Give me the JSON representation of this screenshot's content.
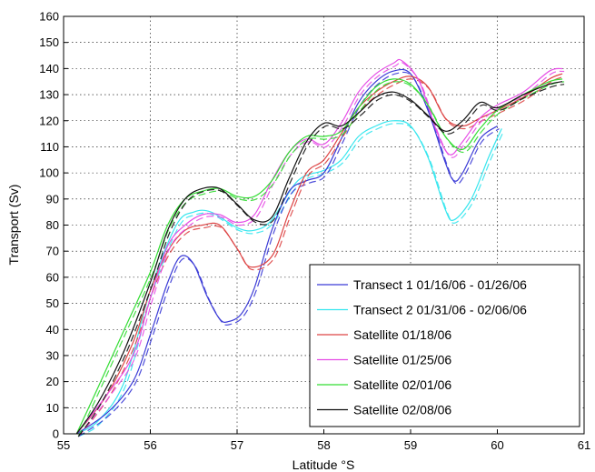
{
  "chart_data": {
    "type": "line",
    "title": "",
    "xlabel": "Latitude °S",
    "ylabel": "Transport (Sv)",
    "xlim": [
      55,
      61
    ],
    "ylim": [
      0,
      160
    ],
    "xticks": [
      55,
      56,
      57,
      58,
      59,
      60,
      61
    ],
    "yticks": [
      0,
      10,
      20,
      30,
      40,
      50,
      60,
      70,
      80,
      90,
      100,
      110,
      120,
      130,
      140,
      150,
      160
    ],
    "grid": true,
    "legend_position": "bottom-right",
    "series": [
      {
        "name": "Transect 1 01/16/06 - 01/26/06",
        "color": "#3b3bd6",
        "x": [
          55.15,
          55.5,
          55.8,
          56.0,
          56.2,
          56.35,
          56.5,
          56.65,
          56.8,
          56.9,
          57.05,
          57.2,
          57.4,
          57.6,
          57.8,
          58.0,
          58.2,
          58.4,
          58.6,
          58.8,
          59.0,
          59.2,
          59.4,
          59.5,
          59.6,
          59.8,
          60.0
        ],
        "y": [
          0,
          8,
          20,
          38,
          58,
          68,
          65,
          53,
          44,
          43,
          46,
          56,
          78,
          93,
          97,
          100,
          113,
          127,
          135,
          139,
          138,
          124,
          104,
          97,
          100,
          113,
          118
        ]
      },
      {
        "name": "Transect 2 01/31/06 - 02/06/06",
        "color": "#36e6ee",
        "x": [
          55.15,
          55.4,
          55.7,
          56.0,
          56.3,
          56.5,
          56.7,
          57.0,
          57.2,
          57.4,
          57.7,
          58.0,
          58.2,
          58.4,
          58.6,
          58.8,
          59.0,
          59.2,
          59.4,
          59.5,
          59.7,
          59.9,
          60.05
        ],
        "y": [
          0,
          5,
          20,
          55,
          80,
          85,
          85,
          79,
          78,
          82,
          97,
          101,
          105,
          114,
          118,
          120,
          118,
          106,
          86,
          82,
          90,
          106,
          117
        ]
      },
      {
        "name": "Satellite 01/18/06",
        "color": "#dd4444",
        "x": [
          55.15,
          55.5,
          55.8,
          56.0,
          56.2,
          56.4,
          56.6,
          56.8,
          57.0,
          57.15,
          57.4,
          57.6,
          57.8,
          58.0,
          58.2,
          58.4,
          58.6,
          58.8,
          59.0,
          59.2,
          59.4,
          59.6,
          59.8,
          60.0,
          60.3,
          60.6,
          60.75
        ],
        "y": [
          0,
          15,
          35,
          55,
          70,
          78,
          80,
          80,
          71,
          64,
          68,
          85,
          100,
          105,
          115,
          125,
          131,
          135,
          137,
          133,
          121,
          118,
          121,
          124,
          129,
          136,
          138
        ]
      },
      {
        "name": "Satellite 01/25/06",
        "color": "#e64ee6",
        "x": [
          55.15,
          55.5,
          55.8,
          56.0,
          56.2,
          56.4,
          56.6,
          56.8,
          57.0,
          57.2,
          57.4,
          57.6,
          57.8,
          58.0,
          58.2,
          58.4,
          58.6,
          58.8,
          58.9,
          59.1,
          59.3,
          59.45,
          59.6,
          59.8,
          60.0,
          60.3,
          60.6,
          60.75
        ],
        "y": [
          0,
          15,
          30,
          52,
          72,
          80,
          84,
          84,
          81,
          84,
          97,
          108,
          113,
          111,
          119,
          131,
          138,
          142,
          143,
          135,
          116,
          107,
          112,
          121,
          126,
          131,
          139,
          140
        ]
      },
      {
        "name": "Satellite 02/01/06",
        "color": "#33dd33",
        "x": [
          55.15,
          55.4,
          55.7,
          56.0,
          56.2,
          56.4,
          56.6,
          56.8,
          57.0,
          57.2,
          57.4,
          57.6,
          57.8,
          58.0,
          58.2,
          58.4,
          58.6,
          58.8,
          59.0,
          59.2,
          59.4,
          59.6,
          59.8,
          60.0,
          60.3,
          60.6,
          60.75
        ],
        "y": [
          0,
          18,
          40,
          62,
          80,
          90,
          93,
          94,
          91,
          91,
          97,
          108,
          114,
          114,
          116,
          125,
          133,
          136,
          134,
          126,
          114,
          109,
          117,
          124,
          130,
          135,
          136
        ]
      },
      {
        "name": "Satellite 02/08/06",
        "color": "#111111",
        "x": [
          55.15,
          55.4,
          55.7,
          56.0,
          56.2,
          56.4,
          56.6,
          56.8,
          57.0,
          57.2,
          57.4,
          57.6,
          57.8,
          58.0,
          58.2,
          58.4,
          58.6,
          58.8,
          59.0,
          59.2,
          59.4,
          59.6,
          59.8,
          60.0,
          60.3,
          60.6,
          60.75
        ],
        "y": [
          0,
          12,
          32,
          58,
          78,
          90,
          94,
          94,
          88,
          82,
          83,
          98,
          112,
          119,
          118,
          123,
          129,
          131,
          128,
          122,
          116,
          120,
          127,
          125,
          130,
          134,
          135
        ]
      }
    ]
  }
}
